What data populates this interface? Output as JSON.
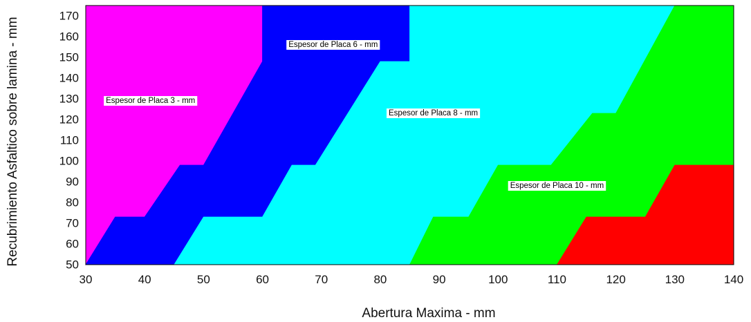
{
  "chart_data": {
    "type": "area",
    "title": "",
    "xlabel": "Abertura Maxima - mm",
    "ylabel": "Recubrimiento Asfaltico sobre lamina - mm",
    "xlim": [
      30,
      140
    ],
    "ylim": [
      50,
      175
    ],
    "x_ticks": [
      30,
      40,
      50,
      60,
      70,
      80,
      90,
      100,
      110,
      120,
      130,
      140
    ],
    "y_ticks": [
      50,
      60,
      70,
      80,
      90,
      100,
      110,
      120,
      130,
      140,
      150,
      160,
      170
    ],
    "grid": false,
    "regions": [
      {
        "name": "Espesor de Placa 3 - mm",
        "color": "#ff00ff",
        "label": "Espesor de Placa 3 - mm",
        "label_at": [
          41,
          129
        ],
        "polygon": [
          [
            30,
            50
          ],
          [
            30,
            175
          ],
          [
            60,
            175
          ],
          [
            60,
            148
          ],
          [
            50,
            98
          ],
          [
            46,
            98
          ],
          [
            40,
            73
          ],
          [
            35,
            73
          ]
        ]
      },
      {
        "name": "Espesor de Placa 6 - mm",
        "color": "#0000ff",
        "label": "Espesor de Placa 6 - mm",
        "label_at": [
          72,
          156
        ],
        "polygon": [
          [
            30,
            50
          ],
          [
            35,
            73
          ],
          [
            40,
            73
          ],
          [
            46,
            98
          ],
          [
            50,
            98
          ],
          [
            60,
            148
          ],
          [
            60,
            175
          ],
          [
            85,
            175
          ],
          [
            85,
            148
          ],
          [
            80,
            148
          ],
          [
            69,
            98
          ],
          [
            65,
            98
          ],
          [
            60,
            73
          ],
          [
            50,
            73
          ],
          [
            45,
            50
          ]
        ]
      },
      {
        "name": "Espesor de Placa 8 - mm",
        "color": "#00ffff",
        "label": "Espesor de Placa 8 - mm",
        "label_at": [
          89,
          123
        ],
        "polygon": [
          [
            45,
            50
          ],
          [
            50,
            73
          ],
          [
            60,
            73
          ],
          [
            65,
            98
          ],
          [
            69,
            98
          ],
          [
            80,
            148
          ],
          [
            85,
            148
          ],
          [
            85,
            175
          ],
          [
            130,
            175
          ],
          [
            120,
            123
          ],
          [
            116,
            123
          ],
          [
            109,
            98
          ],
          [
            100,
            98
          ],
          [
            95,
            73
          ],
          [
            89,
            73
          ],
          [
            85,
            50
          ]
        ]
      },
      {
        "name": "Espesor de Placa 10 - mm",
        "color": "#00ff00",
        "label": "Espesor de Placa 10 - mm",
        "label_at": [
          110,
          88
        ],
        "polygon": [
          [
            85,
            50
          ],
          [
            89,
            73
          ],
          [
            95,
            73
          ],
          [
            100,
            98
          ],
          [
            109,
            98
          ],
          [
            116,
            123
          ],
          [
            120,
            123
          ],
          [
            130,
            175
          ],
          [
            140,
            175
          ],
          [
            140,
            98
          ],
          [
            130,
            98
          ],
          [
            125,
            73
          ],
          [
            115,
            73
          ],
          [
            110,
            50
          ]
        ]
      },
      {
        "name": "",
        "color": "#ff0000",
        "label": "",
        "polygon": [
          [
            110,
            50
          ],
          [
            115,
            73
          ],
          [
            125,
            73
          ],
          [
            130,
            98
          ],
          [
            140,
            98
          ],
          [
            140,
            50
          ]
        ]
      }
    ]
  }
}
